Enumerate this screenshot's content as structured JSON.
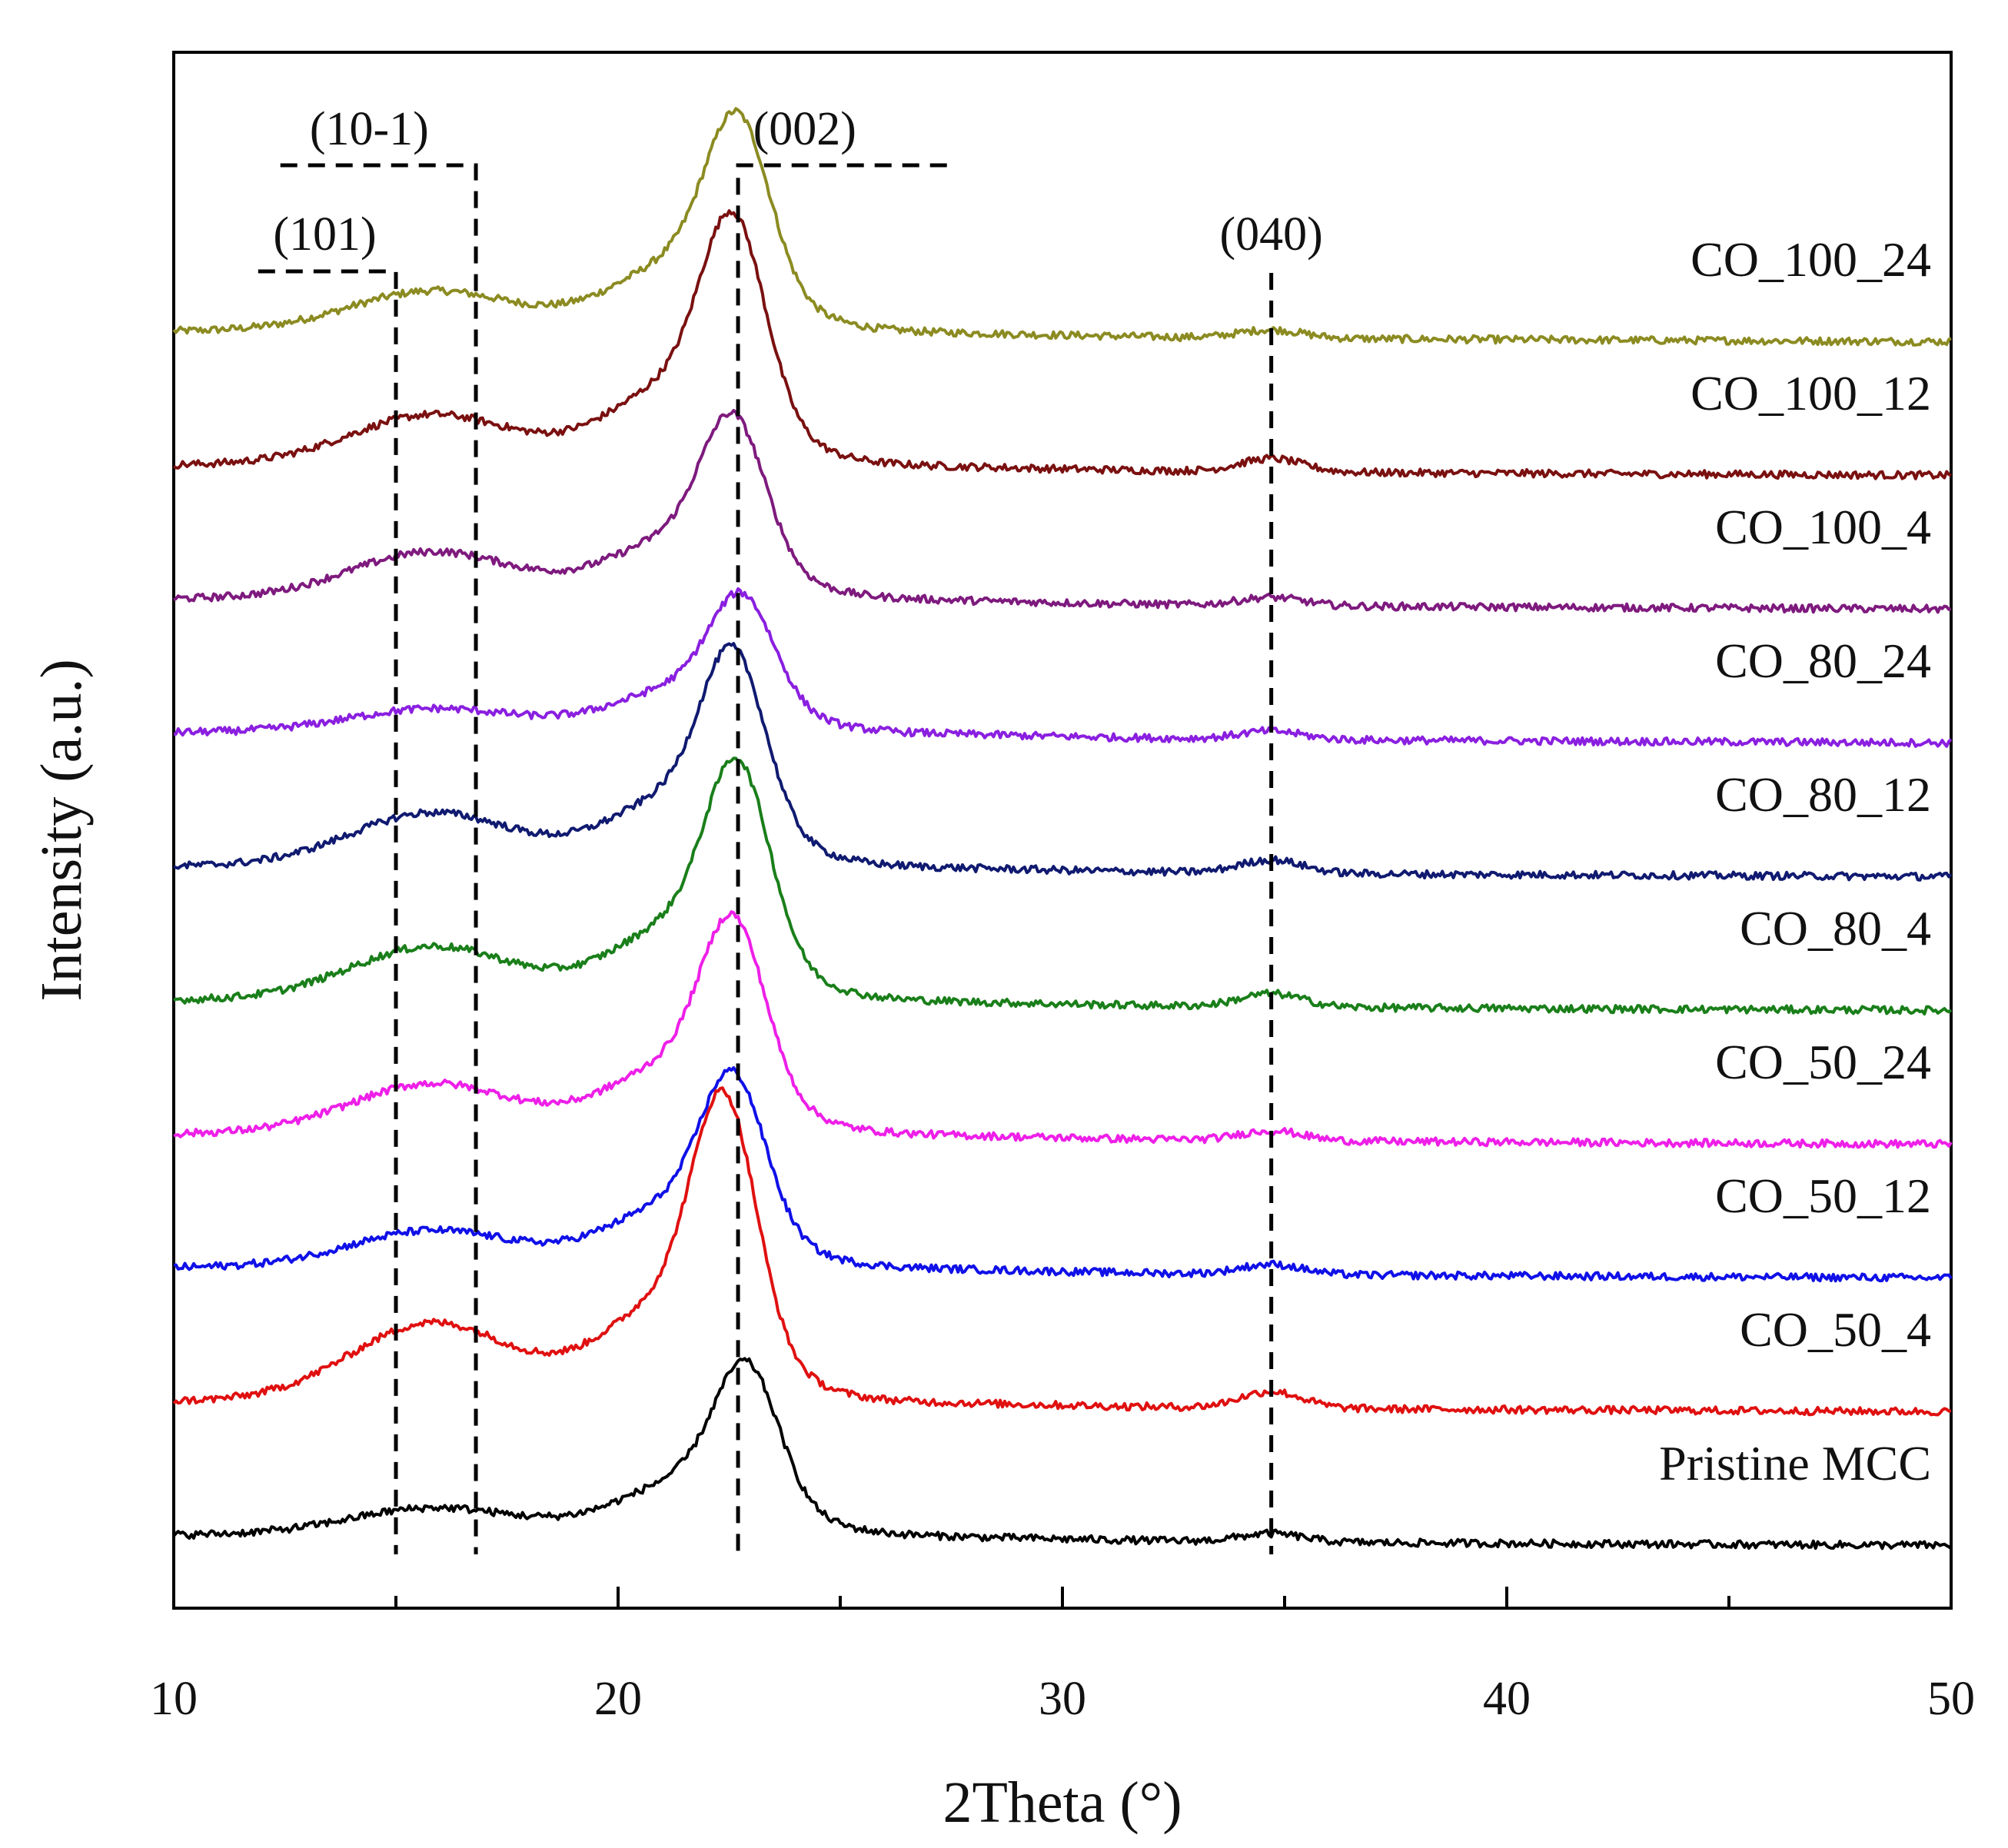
{
  "chart_data": {
    "type": "line",
    "title": "",
    "xlabel": "2Theta (°)",
    "ylabel": "Intensity (a.u.)",
    "xlim": [
      10,
      50
    ],
    "xticks": [
      10,
      20,
      30,
      40,
      50
    ],
    "x_tick_labels": [
      "10",
      "20",
      "30",
      "40",
      "50"
    ],
    "grid": false,
    "peak_annotations": [
      {
        "label": "(101)",
        "x": 15.0
      },
      {
        "label": "(10-1)",
        "x": 16.8
      },
      {
        "label": "(002)",
        "x": 22.7
      },
      {
        "label": "(040)",
        "x": 34.7
      }
    ],
    "series": [
      {
        "name": "CO_100_24",
        "color": "#8b8b22",
        "offset": 9,
        "peak002_x": 22.7,
        "peak002_height": 0.95,
        "amorphous_height": 0.22,
        "peak040_height": 0.05
      },
      {
        "name": "CO_100_12",
        "color": "#7a1010",
        "offset": 8,
        "peak002_x": 22.6,
        "peak002_height": 1.1,
        "amorphous_height": 0.28,
        "peak040_height": 0.08
      },
      {
        "name": "CO_100_4",
        "color": "#7e1a7e",
        "offset": 7,
        "peak002_x": 22.6,
        "peak002_height": 0.8,
        "amorphous_height": 0.26,
        "peak040_height": 0.05
      },
      {
        "name": "CO_80_24",
        "color": "#8a1fe0",
        "offset": 6,
        "peak002_x": 22.8,
        "peak002_height": 0.6,
        "amorphous_height": 0.12,
        "peak040_height": 0.05
      },
      {
        "name": "CO_80_12",
        "color": "#101a70",
        "offset": 5,
        "peak002_x": 22.6,
        "peak002_height": 0.95,
        "amorphous_height": 0.3,
        "peak040_height": 0.08
      },
      {
        "name": "CO_80_4",
        "color": "#1a7f1a",
        "offset": 4,
        "peak002_x": 22.7,
        "peak002_height": 1.05,
        "amorphous_height": 0.3,
        "peak040_height": 0.08
      },
      {
        "name": "CO_50_24",
        "color": "#ee1fe8",
        "offset": 3,
        "peak002_x": 22.6,
        "peak002_height": 0.95,
        "amorphous_height": 0.28,
        "peak040_height": 0.06
      },
      {
        "name": "CO_50_12",
        "color": "#1010e8",
        "offset": 2,
        "peak002_x": 22.6,
        "peak002_height": 0.85,
        "amorphous_height": 0.2,
        "peak040_height": 0.06
      },
      {
        "name": "CO_50_4",
        "color": "#e01010",
        "offset": 1,
        "peak002_x": 22.4,
        "peak002_height": 1.35,
        "amorphous_height": 0.45,
        "peak040_height": 0.1
      },
      {
        "name": "Pristine MCC",
        "color": "#000000",
        "offset": 0,
        "peak002_x": 22.9,
        "peak002_height": 0.75,
        "amorphous_height": 0.14,
        "peak040_height": 0.05
      }
    ]
  }
}
